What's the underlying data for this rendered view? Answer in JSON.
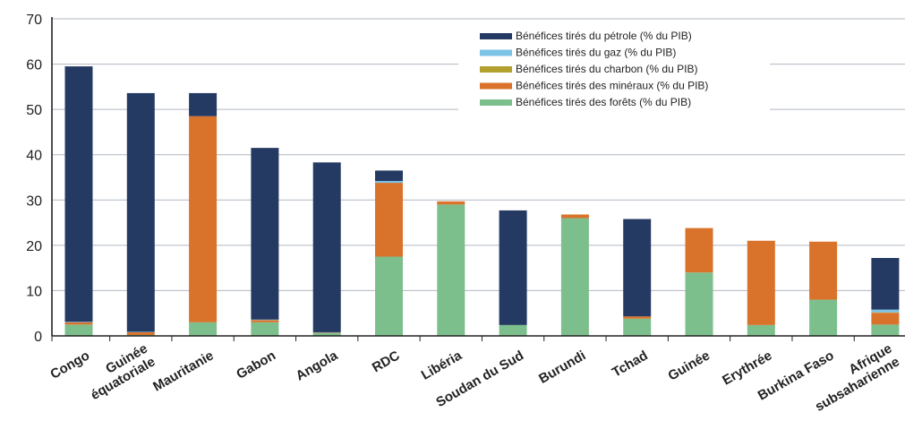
{
  "chart_data": {
    "type": "bar",
    "stacked": true,
    "title": "",
    "xlabel": "",
    "ylabel": "",
    "ylim": [
      0,
      70
    ],
    "yticks": [
      0,
      10,
      20,
      30,
      40,
      50,
      60,
      70
    ],
    "grid": true,
    "legend_position": "top-right",
    "categories": [
      [
        "Congo"
      ],
      [
        "Guinée",
        "équatoriale"
      ],
      [
        "Mauritanie"
      ],
      [
        "Gabon"
      ],
      [
        "Angola"
      ],
      [
        "RDC"
      ],
      [
        "Libéria"
      ],
      [
        "Soudan du Sud"
      ],
      [
        "Burundi"
      ],
      [
        "Tchad"
      ],
      [
        "Guinée"
      ],
      [
        "Erythrée"
      ],
      [
        "Burkina Faso"
      ],
      [
        "Afrique",
        "subsaharienne"
      ]
    ],
    "series": [
      {
        "name": "Bénéfices tirés des forêts (% du PIB)",
        "color": "#7dbf8c",
        "values": [
          2.5,
          0.2,
          3.0,
          3.0,
          0.6,
          17.5,
          29.0,
          2.4,
          26.0,
          3.8,
          14.0,
          2.4,
          8.0,
          2.5
        ]
      },
      {
        "name": "Bénéfices tirés des minéraux (% du PIB)",
        "color": "#d9732b",
        "values": [
          0.5,
          0.6,
          45.5,
          0.5,
          0.1,
          16.3,
          0.7,
          0.0,
          0.8,
          0.5,
          9.8,
          18.6,
          12.8,
          2.6
        ]
      },
      {
        "name": "Bénéfices tirés du charbon (% du PIB)",
        "color": "#b3a12e",
        "values": [
          0,
          0,
          0,
          0,
          0,
          0,
          0,
          0,
          0,
          0,
          0,
          0,
          0,
          0.1
        ]
      },
      {
        "name": "Bénéfices tirés du gaz (% du PIB)",
        "color": "#7cc3e6",
        "values": [
          0.1,
          0.1,
          0,
          0.1,
          0.1,
          0.4,
          0,
          0,
          0,
          0,
          0,
          0,
          0,
          0.6
        ]
      },
      {
        "name": "Bénéfices tirés du pétrole (% du PIB)",
        "color": "#253a63",
        "values": [
          56.4,
          52.7,
          5.1,
          37.9,
          37.5,
          2.3,
          0,
          25.3,
          0,
          21.5,
          0,
          0,
          0,
          11.4
        ]
      }
    ],
    "legend_order": [
      "Bénéfices tirés du pétrole (% du PIB)",
      "Bénéfices tirés du gaz (% du PIB)",
      "Bénéfices tirés du charbon (% du PIB)",
      "Bénéfices tirés des minéraux (% du PIB)",
      "Bénéfices tirés des forêts (% du PIB)"
    ]
  }
}
